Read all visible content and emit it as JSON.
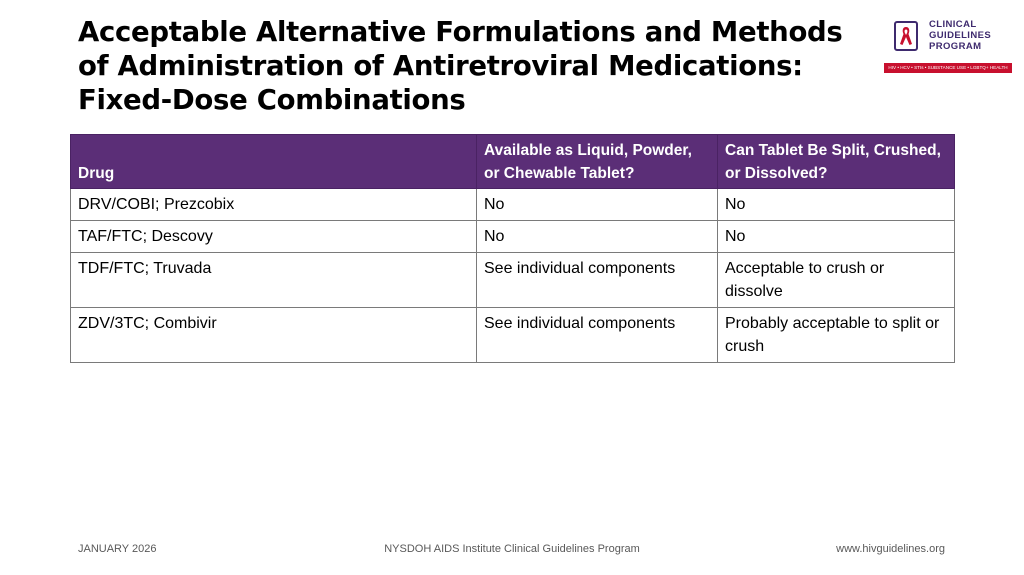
{
  "title": {
    "line1": "Acceptable Alternative Formulations and Methods",
    "line2": "of Administration of Antiretroviral Medications:",
    "line3": "Fixed-Dose Combinations"
  },
  "logo": {
    "line1": "CLINICAL",
    "line2": "GUIDELINES",
    "line3": "PROGRAM",
    "tagline": "HIV • HCV • STIs • SUBSTANCE USE • LGBTQ+ HEALTH",
    "icon": "red-ribbon-icon",
    "colors": {
      "purple": "#3e2a6e",
      "red": "#c8102e"
    }
  },
  "table": {
    "headers": [
      "Drug",
      "Available as Liquid, Powder, or Chewable Tablet?",
      "Can Tablet Be Split, Crushed, or Dissolved?"
    ],
    "rows": [
      [
        "DRV/COBI; Prezcobix",
        "No",
        "No"
      ],
      [
        "TAF/FTC; Descovy",
        "No",
        "No"
      ],
      [
        "TDF/FTC; Truvada",
        "See individual components",
        "Acceptable to crush or dissolve"
      ],
      [
        "ZDV/3TC; Combivir",
        "See individual components",
        "Probably acceptable to split or crush"
      ]
    ],
    "header_color": "#5b2e77"
  },
  "footer": {
    "left": "JANUARY 2026",
    "center": "NYSDOH AIDS Institute Clinical Guidelines Program",
    "right": "www.hivguidelines.org"
  }
}
